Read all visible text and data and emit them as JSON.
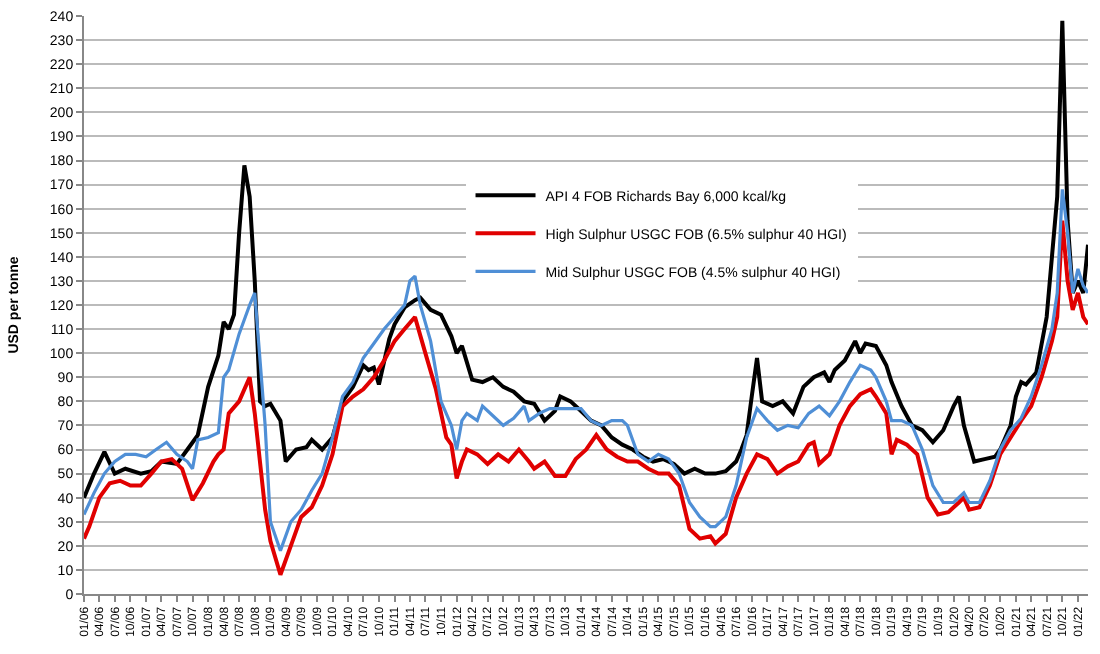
{
  "chart_data": {
    "type": "line",
    "ylabel": "USD per tonne",
    "ylim": [
      0,
      240
    ],
    "yticks": [
      0,
      10,
      20,
      30,
      40,
      50,
      60,
      70,
      80,
      90,
      100,
      110,
      120,
      130,
      140,
      150,
      160,
      170,
      180,
      190,
      200,
      210,
      220,
      230,
      240
    ],
    "xlim": [
      "2006-01",
      "2022-03"
    ],
    "xticks": [
      {
        "value": "2006-01",
        "label": "01/06"
      },
      {
        "value": "2006-04",
        "label": "04/06"
      },
      {
        "value": "2006-07",
        "label": "07/06"
      },
      {
        "value": "2006-10",
        "label": "10/06"
      },
      {
        "value": "2007-01",
        "label": "01/07"
      },
      {
        "value": "2007-04",
        "label": "04/07"
      },
      {
        "value": "2007-07",
        "label": "07/07"
      },
      {
        "value": "2007-10",
        "label": "10/07"
      },
      {
        "value": "2008-01",
        "label": "01/08"
      },
      {
        "value": "2008-04",
        "label": "04/08"
      },
      {
        "value": "2008-07",
        "label": "07/08"
      },
      {
        "value": "2008-10",
        "label": "10/08"
      },
      {
        "value": "2009-01",
        "label": "01/09"
      },
      {
        "value": "2009-04",
        "label": "04/09"
      },
      {
        "value": "2009-07",
        "label": "07/09"
      },
      {
        "value": "2009-10",
        "label": "10/09"
      },
      {
        "value": "2010-01",
        "label": "01/10"
      },
      {
        "value": "2010-04",
        "label": "04/10"
      },
      {
        "value": "2010-07",
        "label": "07/10"
      },
      {
        "value": "2010-10",
        "label": "10/10"
      },
      {
        "value": "2011-01",
        "label": "01/11"
      },
      {
        "value": "2011-04",
        "label": "04/11"
      },
      {
        "value": "2011-07",
        "label": "07/11"
      },
      {
        "value": "2011-10",
        "label": "10/11"
      },
      {
        "value": "2012-01",
        "label": "01/12"
      },
      {
        "value": "2012-04",
        "label": "04/12"
      },
      {
        "value": "2012-07",
        "label": "07/12"
      },
      {
        "value": "2012-10",
        "label": "10/12"
      },
      {
        "value": "2013-01",
        "label": "01/13"
      },
      {
        "value": "2013-04",
        "label": "04/13"
      },
      {
        "value": "2013-07",
        "label": "07/13"
      },
      {
        "value": "2013-10",
        "label": "10/13"
      },
      {
        "value": "2014-01",
        "label": "01/14"
      },
      {
        "value": "2014-04",
        "label": "04/14"
      },
      {
        "value": "2014-07",
        "label": "07/14"
      },
      {
        "value": "2014-10",
        "label": "10/14"
      },
      {
        "value": "2015-01",
        "label": "01/15"
      },
      {
        "value": "2015-04",
        "label": "04/15"
      },
      {
        "value": "2015-07",
        "label": "07/15"
      },
      {
        "value": "2015-10",
        "label": "10/15"
      },
      {
        "value": "2016-01",
        "label": "01/16"
      },
      {
        "value": "2016-04",
        "label": "04/16"
      },
      {
        "value": "2016-07",
        "label": "07/16"
      },
      {
        "value": "2016-10",
        "label": "10/16"
      },
      {
        "value": "2017-01",
        "label": "01/17"
      },
      {
        "value": "2017-04",
        "label": "04/17"
      },
      {
        "value": "2017-07",
        "label": "07/17"
      },
      {
        "value": "2017-10",
        "label": "10/17"
      },
      {
        "value": "2018-01",
        "label": "01/18"
      },
      {
        "value": "2018-04",
        "label": "04/18"
      },
      {
        "value": "2018-07",
        "label": "07/18"
      },
      {
        "value": "2018-10",
        "label": "10/18"
      },
      {
        "value": "2019-01",
        "label": "01/19"
      },
      {
        "value": "2019-04",
        "label": "04/19"
      },
      {
        "value": "2019-07",
        "label": "07/19"
      },
      {
        "value": "2019-10",
        "label": "10/19"
      },
      {
        "value": "2020-01",
        "label": "01/20"
      },
      {
        "value": "2020-04",
        "label": "04/20"
      },
      {
        "value": "2020-07",
        "label": "07/20"
      },
      {
        "value": "2020-10",
        "label": "10/20"
      },
      {
        "value": "2021-01",
        "label": "01/21"
      },
      {
        "value": "2021-04",
        "label": "04/21"
      },
      {
        "value": "2021-07",
        "label": "07/21"
      },
      {
        "value": "2021-10",
        "label": "10/21"
      },
      {
        "value": "2022-01",
        "label": "01/22"
      }
    ],
    "grid": "y",
    "legend": "top",
    "marker": "none",
    "line_style": "solid",
    "series": [
      {
        "name": "API 4 FOB Richards Bay 6,000 kcal/kg",
        "color": "#000000",
        "x": [
          "2006-01",
          "2006-03",
          "2006-05",
          "2006-07",
          "2006-09",
          "2006-12",
          "2007-02",
          "2007-04",
          "2007-07",
          "2007-09",
          "2007-11",
          "2008-01",
          "2008-03",
          "2008-04",
          "2008-05",
          "2008-06",
          "2008-07",
          "2008-08",
          "2008-09",
          "2008-10",
          "2008-11",
          "2008-12",
          "2009-01",
          "2009-03",
          "2009-04",
          "2009-06",
          "2009-08",
          "2009-09",
          "2009-11",
          "2010-01",
          "2010-03",
          "2010-05",
          "2010-07",
          "2010-08",
          "2010-09",
          "2010-10",
          "2010-12",
          "2011-01",
          "2011-03",
          "2011-05",
          "2011-06",
          "2011-08",
          "2011-10",
          "2011-12",
          "2012-01",
          "2012-02",
          "2012-04",
          "2012-06",
          "2012-08",
          "2012-10",
          "2012-12",
          "2013-02",
          "2013-04",
          "2013-06",
          "2013-08",
          "2013-09",
          "2013-11",
          "2014-01",
          "2014-03",
          "2014-05",
          "2014-07",
          "2014-09",
          "2014-11",
          "2015-01",
          "2015-03",
          "2015-05",
          "2015-07",
          "2015-09",
          "2015-11",
          "2016-01",
          "2016-03",
          "2016-05",
          "2016-07",
          "2016-08",
          "2016-09",
          "2016-10",
          "2016-11",
          "2016-12",
          "2017-02",
          "2017-04",
          "2017-06",
          "2017-08",
          "2017-10",
          "2017-12",
          "2018-01",
          "2018-02",
          "2018-04",
          "2018-06",
          "2018-07",
          "2018-08",
          "2018-10",
          "2018-12",
          "2019-01",
          "2019-03",
          "2019-05",
          "2019-07",
          "2019-09",
          "2019-11",
          "2020-01",
          "2020-02",
          "2020-03",
          "2020-05",
          "2020-07",
          "2020-09",
          "2020-10",
          "2020-12",
          "2021-01",
          "2021-02",
          "2021-03",
          "2021-05",
          "2021-07",
          "2021-08",
          "2021-09",
          "2021-10",
          "2021-11",
          "2021-12",
          "2022-01",
          "2022-02",
          "2022-03"
        ],
        "values": [
          40,
          50,
          59,
          50,
          52,
          50,
          51,
          55,
          54,
          60,
          66,
          86,
          99,
          113,
          110,
          116,
          150,
          178,
          165,
          130,
          80,
          78,
          79,
          72,
          55,
          60,
          61,
          64,
          60,
          65,
          80,
          86,
          95,
          93,
          94,
          87,
          106,
          112,
          119,
          122,
          123,
          118,
          116,
          107,
          100,
          103,
          89,
          88,
          90,
          86,
          84,
          80,
          79,
          72,
          76,
          82,
          80,
          76,
          72,
          70,
          65,
          62,
          60,
          57,
          55,
          56,
          54,
          50,
          52,
          50,
          50,
          51,
          55,
          60,
          66,
          82,
          98,
          80,
          78,
          80,
          75,
          86,
          90,
          92,
          88,
          93,
          97,
          105,
          100,
          104,
          103,
          95,
          88,
          78,
          70,
          68,
          63,
          68,
          78,
          82,
          70,
          55,
          56,
          57,
          60,
          70,
          82,
          88,
          87,
          92,
          115,
          140,
          165,
          238,
          155,
          125,
          130,
          125,
          145
        ]
      },
      {
        "name": "High Sulphur USGC FOB (6.5% sulphur 40 HGI)",
        "color": "#e00000",
        "x": [
          "2006-01",
          "2006-02",
          "2006-04",
          "2006-06",
          "2006-08",
          "2006-10",
          "2006-12",
          "2007-02",
          "2007-04",
          "2007-06",
          "2007-08",
          "2007-10",
          "2007-12",
          "2008-02",
          "2008-03",
          "2008-04",
          "2008-05",
          "2008-07",
          "2008-09",
          "2008-10",
          "2008-12",
          "2009-01",
          "2009-03",
          "2009-05",
          "2009-07",
          "2009-09",
          "2009-11",
          "2010-01",
          "2010-03",
          "2010-05",
          "2010-07",
          "2010-09",
          "2010-11",
          "2011-01",
          "2011-03",
          "2011-05",
          "2011-07",
          "2011-09",
          "2011-11",
          "2011-12",
          "2012-01",
          "2012-02",
          "2012-03",
          "2012-05",
          "2012-07",
          "2012-09",
          "2012-11",
          "2013-01",
          "2013-03",
          "2013-04",
          "2013-06",
          "2013-08",
          "2013-10",
          "2013-12",
          "2014-02",
          "2014-04",
          "2014-06",
          "2014-08",
          "2014-10",
          "2014-12",
          "2015-02",
          "2015-04",
          "2015-06",
          "2015-08",
          "2015-10",
          "2015-12",
          "2016-02",
          "2016-03",
          "2016-05",
          "2016-07",
          "2016-09",
          "2016-11",
          "2017-01",
          "2017-03",
          "2017-05",
          "2017-07",
          "2017-09",
          "2017-10",
          "2017-11",
          "2018-01",
          "2018-03",
          "2018-05",
          "2018-07",
          "2018-09",
          "2018-10",
          "2018-12",
          "2019-01",
          "2019-02",
          "2019-04",
          "2019-06",
          "2019-08",
          "2019-10",
          "2019-12",
          "2020-02",
          "2020-03",
          "2020-04",
          "2020-06",
          "2020-08",
          "2020-10",
          "2020-12",
          "2021-02",
          "2021-04",
          "2021-06",
          "2021-08",
          "2021-09",
          "2021-10",
          "2021-11",
          "2021-12",
          "2022-01",
          "2022-02",
          "2022-03"
        ],
        "values": [
          23,
          28,
          40,
          46,
          47,
          45,
          45,
          50,
          55,
          56,
          52,
          39,
          46,
          55,
          58,
          60,
          75,
          80,
          90,
          75,
          35,
          22,
          8,
          20,
          32,
          36,
          45,
          58,
          78,
          82,
          85,
          90,
          97,
          105,
          110,
          115,
          100,
          85,
          65,
          62,
          48,
          55,
          60,
          58,
          54,
          58,
          55,
          60,
          55,
          52,
          55,
          49,
          49,
          56,
          60,
          66,
          60,
          57,
          55,
          55,
          52,
          50,
          50,
          45,
          27,
          23,
          24,
          21,
          25,
          40,
          50,
          58,
          56,
          50,
          53,
          55,
          62,
          63,
          54,
          58,
          70,
          78,
          83,
          85,
          82,
          75,
          58,
          64,
          62,
          58,
          40,
          33,
          34,
          38,
          40,
          35,
          36,
          45,
          58,
          65,
          72,
          78,
          90,
          105,
          115,
          155,
          130,
          118,
          125,
          115,
          112
        ]
      },
      {
        "name": "Mid Sulphur USGC FOB (4.5% sulphur 40 HGI)",
        "color": "#4f8fd6",
        "x": [
          "2006-01",
          "2006-03",
          "2006-05",
          "2006-07",
          "2006-09",
          "2006-11",
          "2007-01",
          "2007-03",
          "2007-05",
          "2007-07",
          "2007-09",
          "2007-10",
          "2007-11",
          "2008-01",
          "2008-03",
          "2008-04",
          "2008-05",
          "2008-07",
          "2008-09",
          "2008-10",
          "2008-12",
          "2009-01",
          "2009-03",
          "2009-05",
          "2009-07",
          "2009-09",
          "2009-11",
          "2010-01",
          "2010-03",
          "2010-05",
          "2010-07",
          "2010-09",
          "2010-11",
          "2011-01",
          "2011-03",
          "2011-04",
          "2011-05",
          "2011-06",
          "2011-08",
          "2011-10",
          "2011-12",
          "2012-01",
          "2012-02",
          "2012-03",
          "2012-05",
          "2012-06",
          "2012-08",
          "2012-10",
          "2012-12",
          "2013-02",
          "2013-03",
          "2013-05",
          "2013-07",
          "2013-09",
          "2013-11",
          "2014-01",
          "2014-03",
          "2014-05",
          "2014-07",
          "2014-09",
          "2014-10",
          "2014-12",
          "2015-02",
          "2015-04",
          "2015-06",
          "2015-08",
          "2015-10",
          "2015-12",
          "2016-02",
          "2016-03",
          "2016-05",
          "2016-07",
          "2016-09",
          "2016-11",
          "2017-01",
          "2017-03",
          "2017-05",
          "2017-07",
          "2017-09",
          "2017-11",
          "2018-01",
          "2018-03",
          "2018-05",
          "2018-07",
          "2018-09",
          "2018-10",
          "2018-12",
          "2019-01",
          "2019-03",
          "2019-05",
          "2019-07",
          "2019-09",
          "2019-11",
          "2020-01",
          "2020-03",
          "2020-04",
          "2020-06",
          "2020-08",
          "2020-10",
          "2020-12",
          "2021-02",
          "2021-04",
          "2021-06",
          "2021-08",
          "2021-09",
          "2021-10",
          "2021-11",
          "2021-12",
          "2022-01",
          "2022-02",
          "2022-03"
        ],
        "values": [
          33,
          42,
          50,
          55,
          58,
          58,
          57,
          60,
          63,
          58,
          55,
          52,
          64,
          65,
          67,
          90,
          93,
          108,
          120,
          125,
          70,
          30,
          18,
          30,
          35,
          43,
          50,
          65,
          82,
          88,
          98,
          104,
          110,
          115,
          120,
          130,
          132,
          120,
          105,
          80,
          70,
          60,
          72,
          75,
          72,
          78,
          74,
          70,
          73,
          78,
          72,
          75,
          77,
          77,
          77,
          77,
          72,
          70,
          72,
          72,
          70,
          58,
          55,
          58,
          56,
          50,
          38,
          32,
          28,
          28,
          32,
          45,
          65,
          77,
          72,
          68,
          70,
          69,
          75,
          78,
          74,
          80,
          88,
          95,
          93,
          90,
          80,
          72,
          72,
          70,
          60,
          45,
          38,
          38,
          42,
          38,
          38,
          47,
          60,
          68,
          73,
          82,
          95,
          110,
          125,
          168,
          150,
          125,
          135,
          128,
          125
        ]
      }
    ]
  }
}
